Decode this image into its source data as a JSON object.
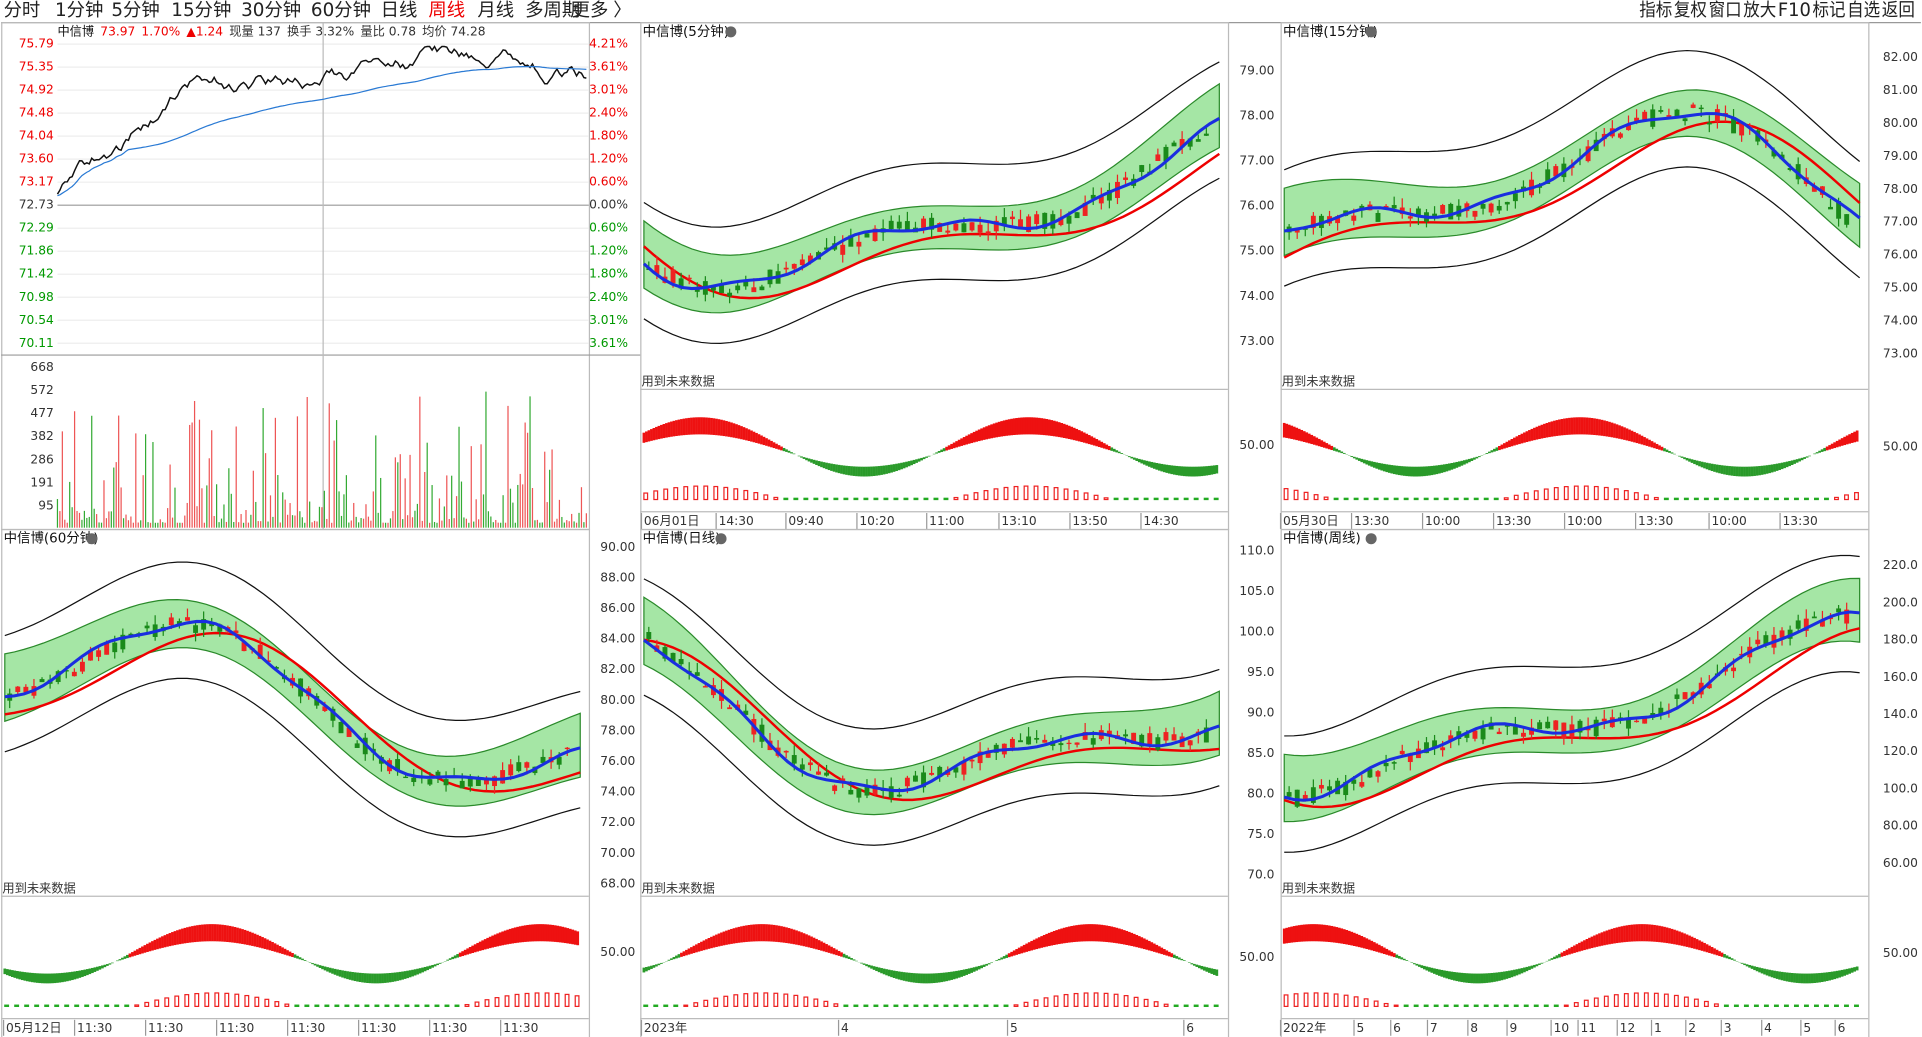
{
  "toolbar": {
    "periods": [
      "分时",
      "1分钟",
      "5分钟",
      "15分钟",
      "30分钟",
      "60分钟",
      "日线",
      "周线",
      "月线",
      "多周期",
      "更多"
    ],
    "active": "周线",
    "tools": [
      "指标",
      "复权",
      "窗口",
      "放大",
      "F10",
      "标记",
      "自选",
      "返回"
    ]
  },
  "intraday": {
    "title": "中信博",
    "price": "73.97",
    "change_pct": "1.70%",
    "change": "▲1.24",
    "fields": [
      "现量 137",
      "换手 3.32%",
      "量比 0.78",
      "均价 74.28"
    ],
    "price_axis": [
      "75.79",
      "75.35",
      "74.92",
      "74.48",
      "74.04",
      "73.60",
      "73.17",
      "72.73",
      "72.29",
      "71.86",
      "71.42",
      "70.98",
      "70.54",
      "70.11"
    ],
    "pct_axis": [
      "4.21%",
      "3.61%",
      "3.01%",
      "2.40%",
      "1.80%",
      "1.20%",
      "0.60%",
      "0.00%",
      "0.60%",
      "1.20%",
      "1.80%",
      "2.40%",
      "3.01%",
      "3.61%"
    ],
    "volume_axis": [
      "668",
      "572",
      "477",
      "382",
      "286",
      "191",
      "95"
    ]
  },
  "panels": [
    {
      "title": "中信博(5分钟)",
      "note": "用到未来数据",
      "y_labels": [
        "79.00",
        "78.00",
        "77.00",
        "76.00",
        "75.00",
        "74.00",
        "73.00"
      ],
      "indicator_label": "50.00",
      "x_labels": [
        "06月01日",
        "14:30",
        "09:40",
        "10:20",
        "11:00",
        "13:10",
        "13:50",
        "14:30"
      ]
    },
    {
      "title": "中信博(15分钟)",
      "note": "用到未来数据",
      "y_labels": [
        "82.00",
        "81.00",
        "80.00",
        "79.00",
        "78.00",
        "77.00",
        "76.00",
        "75.00",
        "74.00",
        "73.00"
      ],
      "indicator_label": "50.00",
      "x_labels": [
        "05月30日",
        "13:30",
        "10:00",
        "13:30",
        "10:00",
        "13:30",
        "10:00",
        "13:30"
      ]
    },
    {
      "title": "中信博(60分钟)",
      "note": "用到未来数据",
      "y_labels": [
        "90.00",
        "88.00",
        "86.00",
        "84.00",
        "82.00",
        "80.00",
        "78.00",
        "76.00",
        "74.00",
        "72.00",
        "70.00",
        "68.00"
      ],
      "indicator_label": "50.00",
      "x_labels": [
        "05月12日",
        "11:30",
        "11:30",
        "11:30",
        "11:30",
        "11:30",
        "11:30",
        "11:30"
      ]
    },
    {
      "title": "中信博(日线)",
      "note": "用到未来数据",
      "y_labels": [
        "110.0",
        "105.0",
        "100.0",
        "95.0",
        "90.0",
        "85.0",
        "80.0",
        "75.0",
        "70.0"
      ],
      "indicator_label": "50.00",
      "x_labels": [
        "2023年",
        "4",
        "5",
        "6"
      ]
    },
    {
      "title": "中信博(周线)",
      "note": "用到未来数据",
      "y_labels": [
        "220.0",
        "200.0",
        "180.0",
        "160.0",
        "140.0",
        "120.0",
        "100.0",
        "80.00",
        "60.00"
      ],
      "indicator_label": "50.00",
      "x_labels": [
        "2022年",
        "5",
        "6",
        "7",
        "8",
        "9",
        "10",
        "11",
        "12",
        "1",
        "2",
        "3",
        "4",
        "5",
        "6"
      ]
    }
  ]
}
